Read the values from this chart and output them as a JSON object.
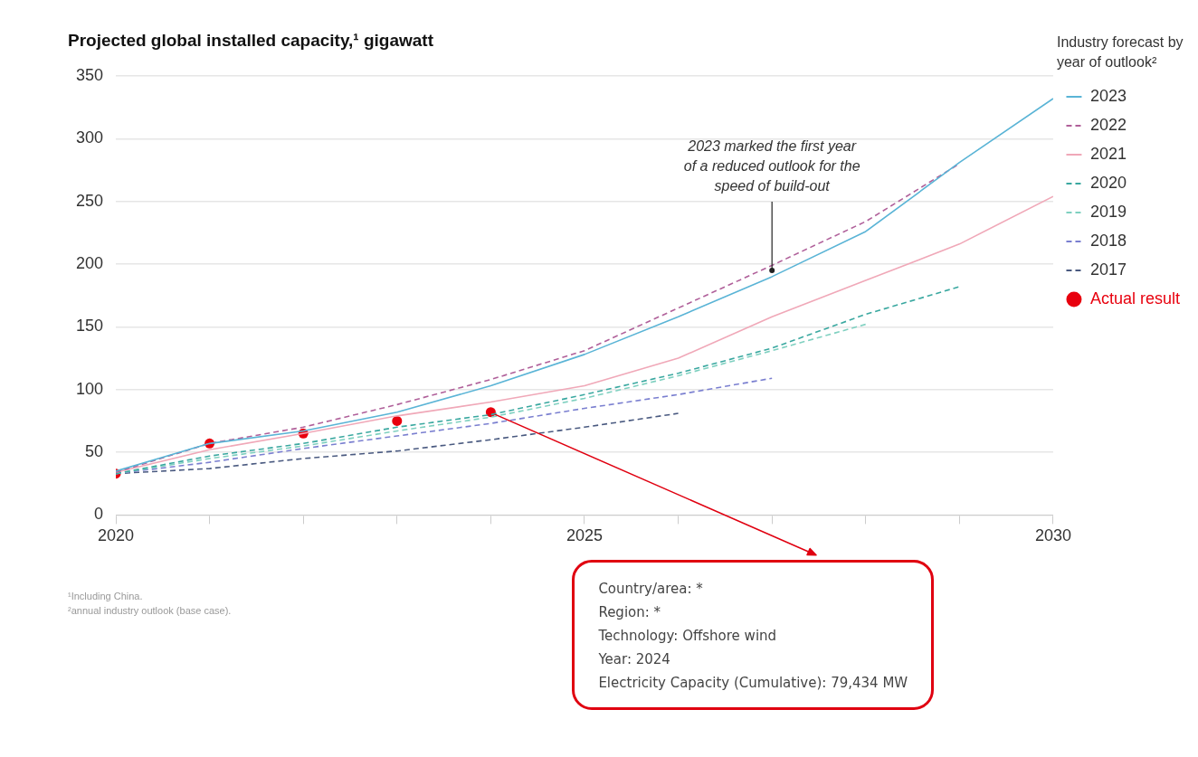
{
  "chart_data": {
    "type": "line",
    "title": "Projected global installed capacity,¹ gigawatt",
    "legend_title": "Industry forecast by year of outlook²",
    "x": [
      2020,
      2021,
      2022,
      2023,
      2024,
      2025,
      2026,
      2027,
      2028,
      2029,
      2030
    ],
    "series": [
      {
        "name": "2023",
        "color": "#5ab4d6",
        "line_style": "solid",
        "values": [
          35,
          57,
          67,
          82,
          103,
          128,
          158,
          190,
          226,
          281,
          332
        ]
      },
      {
        "name": "2022",
        "color": "#b0609a",
        "line_style": "dashed",
        "values": [
          34,
          57,
          70,
          88,
          108,
          131,
          165,
          199,
          234,
          280,
          null
        ]
      },
      {
        "name": "2021",
        "color": "#f0a8b8",
        "line_style": "solid",
        "values": [
          34,
          52,
          65,
          79,
          90,
          103,
          125,
          158,
          187,
          216,
          254
        ]
      },
      {
        "name": "2020",
        "color": "#3aa8a0",
        "line_style": "dashed",
        "values": [
          33,
          47,
          57,
          70,
          80,
          96,
          113,
          133,
          160,
          182,
          null
        ]
      },
      {
        "name": "2019",
        "color": "#7fd0c0",
        "line_style": "dashed",
        "values": [
          33,
          45,
          55,
          67,
          78,
          93,
          111,
          131,
          152,
          null,
          null
        ]
      },
      {
        "name": "2018",
        "color": "#7a7fd0",
        "line_style": "dashed",
        "values": [
          33,
          42,
          53,
          63,
          73,
          85,
          96,
          109,
          null,
          null,
          null
        ]
      },
      {
        "name": "2017",
        "color": "#4a5a80",
        "line_style": "dashed",
        "values": [
          33,
          37,
          45,
          51,
          60,
          70,
          81,
          null,
          null,
          null,
          null
        ]
      },
      {
        "name": "Actual result",
        "type": "scatter",
        "marker": "circle",
        "color": "#e8000e",
        "x": [
          2020,
          2021,
          2022,
          2023,
          2024
        ],
        "values": [
          33,
          57,
          65,
          75,
          82
        ]
      }
    ],
    "xlim": [
      2020,
      2030
    ],
    "xticks": [
      2020,
      {
        "value": 2021,
        "label": null
      },
      {
        "value": 2022,
        "label": null
      },
      {
        "value": 2023,
        "label": null
      },
      {
        "value": 2024,
        "label": null
      },
      2025,
      {
        "value": 2026,
        "label": null
      },
      {
        "value": 2027,
        "label": null
      },
      {
        "value": 2028,
        "label": null
      },
      {
        "value": 2029,
        "label": null
      },
      2030
    ],
    "ylim": [
      0,
      350
    ],
    "yticks": [
      0,
      50,
      100,
      150,
      200,
      250,
      300,
      350
    ],
    "grid": "y",
    "legend": "right",
    "marker": "none",
    "annotations": [
      {
        "text": "2023 marked the first year\nof a reduced outlook for the\nspeed of build-out",
        "x": 2027,
        "y": 192
      },
      "Country/area: *\nRegion: *\nTechnology: Offshore wind\nYear: 2024\nElectricity Capacity (Cumulative): 79,434 MW",
      "¹Including China.",
      "²annual industry outlook (base case)."
    ]
  }
}
